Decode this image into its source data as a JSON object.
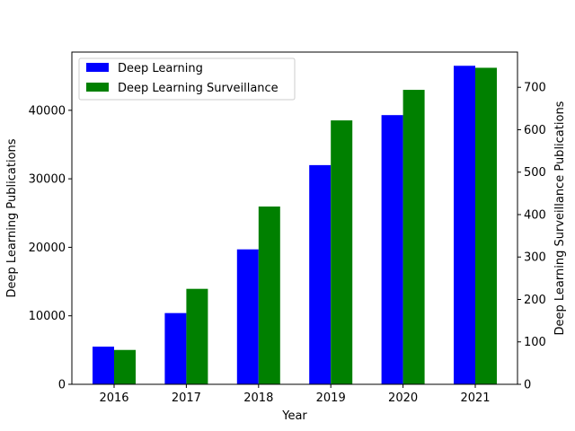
{
  "chart_data": {
    "type": "bar",
    "title": "",
    "categories": [
      "2016",
      "2017",
      "2018",
      "2019",
      "2020",
      "2021"
    ],
    "xlabel": "Year",
    "ylabel": "Deep Learning Publications",
    "y2label": "Deep Learning Surveillance Publications",
    "ylim": [
      0,
      48500
    ],
    "y2lim": [
      0,
      783
    ],
    "yticks": [
      0,
      10000,
      20000,
      30000,
      40000
    ],
    "y2ticks": [
      0,
      100,
      200,
      300,
      400,
      500,
      600,
      700
    ],
    "grid": false,
    "legend_position": "top-left",
    "series": [
      {
        "name": "Deep Learning",
        "axis": "left",
        "color": "#0000ff",
        "values": [
          5500,
          10400,
          19700,
          32000,
          39300,
          46500
        ]
      },
      {
        "name": "Deep Learning Surveillance",
        "axis": "right",
        "color": "#008000",
        "values": [
          81,
          225,
          419,
          622,
          694,
          746
        ]
      }
    ]
  }
}
